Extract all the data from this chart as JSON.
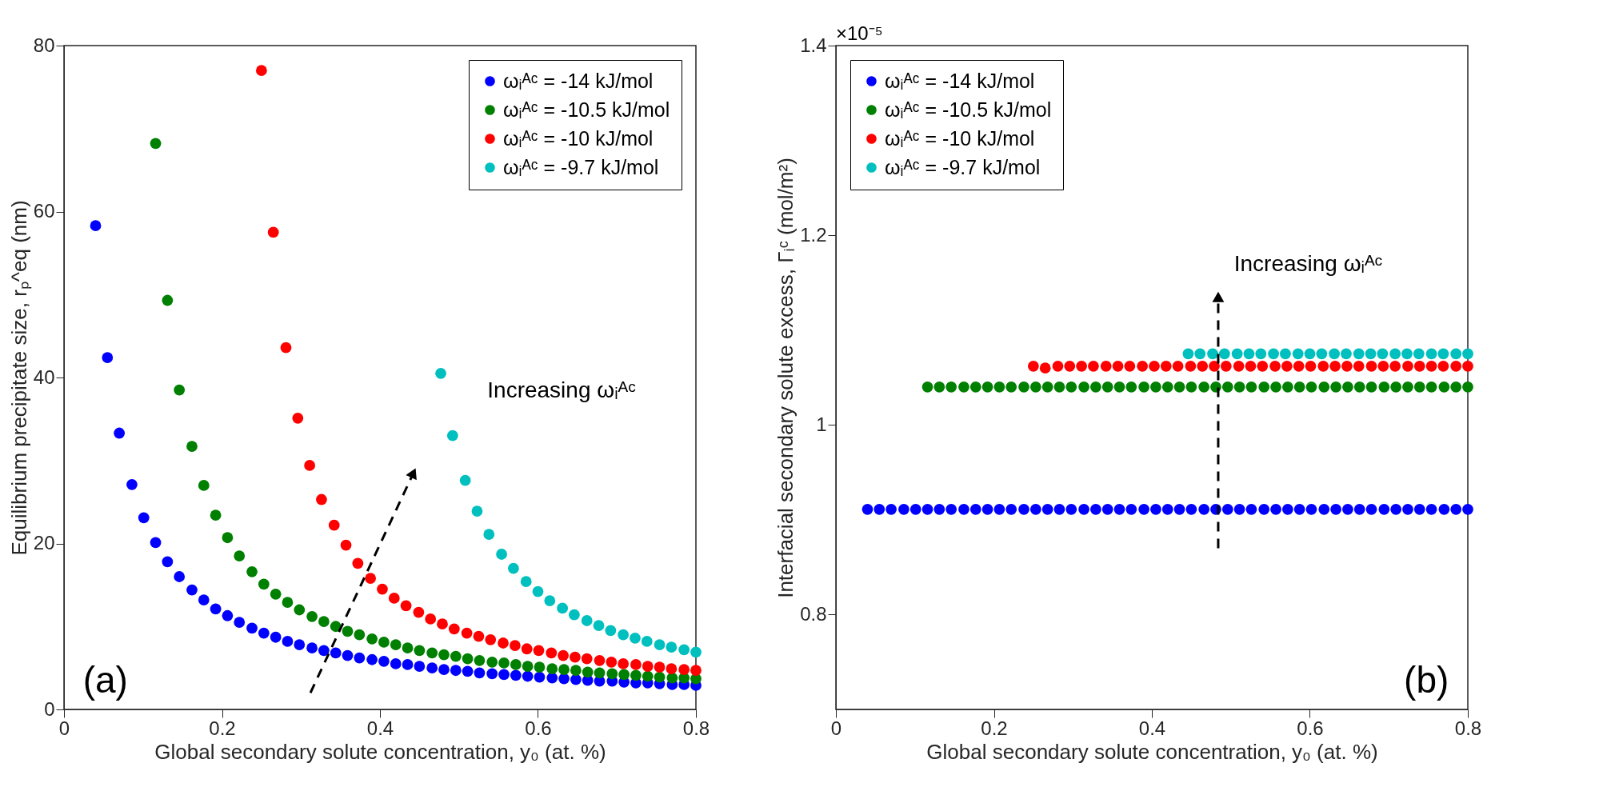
{
  "chart_data": [
    {
      "type": "scatter",
      "xlabel": "Global secondary solute concentration, y₀ (at. %)",
      "ylabel": "Equilibrium precipitate size, rₚ^eq (nm)",
      "xlim": [
        0,
        0.8
      ],
      "xticks": [
        0,
        0.2,
        0.4,
        0.6,
        0.8
      ],
      "ylim": [
        0,
        80
      ],
      "yticks": [
        0,
        20,
        40,
        60,
        80
      ],
      "legend": "top right",
      "marker": "circle",
      "annotations": [
        "(a)",
        "Increasing ωᵢᴬᶜ"
      ],
      "series": [
        {
          "name": "ωᵢᴬᶜ = -14 kJ/mol",
          "color": "#0000ff",
          "x": [
            0.04,
            0.055,
            0.07,
            0.086,
            0.101,
            0.116,
            0.131,
            0.146,
            0.162,
            0.177,
            0.192,
            0.207,
            0.222,
            0.238,
            0.253,
            0.268,
            0.283,
            0.298,
            0.314,
            0.329,
            0.344,
            0.359,
            0.374,
            0.39,
            0.405,
            0.42,
            0.435,
            0.45,
            0.466,
            0.481,
            0.496,
            0.511,
            0.526,
            0.542,
            0.557,
            0.572,
            0.587,
            0.602,
            0.618,
            0.633,
            0.648,
            0.663,
            0.678,
            0.694,
            0.709,
            0.724,
            0.739,
            0.754,
            0.77,
            0.785,
            0.8
          ],
          "values": [
            58.3,
            42.4,
            33.3,
            27.1,
            23.1,
            20.1,
            17.8,
            16.0,
            14.4,
            13.2,
            12.1,
            11.3,
            10.5,
            9.8,
            9.2,
            8.7,
            8.2,
            7.8,
            7.4,
            7.1,
            6.8,
            6.5,
            6.2,
            6.0,
            5.8,
            5.5,
            5.4,
            5.2,
            5.0,
            4.8,
            4.7,
            4.6,
            4.4,
            4.3,
            4.2,
            4.1,
            4.0,
            3.9,
            3.8,
            3.7,
            3.6,
            3.5,
            3.4,
            3.4,
            3.3,
            3.2,
            3.2,
            3.1,
            3.0,
            3.0,
            2.9
          ]
        },
        {
          "name": "ωᵢᴬᶜ = -10.5 kJ/mol",
          "color": "#008000",
          "x": [
            0.116,
            0.131,
            0.146,
            0.162,
            0.177,
            0.192,
            0.207,
            0.222,
            0.238,
            0.253,
            0.268,
            0.283,
            0.298,
            0.314,
            0.329,
            0.344,
            0.359,
            0.374,
            0.39,
            0.405,
            0.42,
            0.435,
            0.45,
            0.466,
            0.481,
            0.496,
            0.511,
            0.526,
            0.542,
            0.557,
            0.572,
            0.587,
            0.602,
            0.618,
            0.633,
            0.648,
            0.663,
            0.678,
            0.694,
            0.709,
            0.724,
            0.739,
            0.754,
            0.77,
            0.785,
            0.8
          ],
          "values": [
            68.2,
            49.3,
            38.5,
            31.7,
            27.0,
            23.4,
            20.7,
            18.5,
            16.6,
            15.1,
            13.9,
            12.9,
            12.0,
            11.2,
            10.6,
            10.0,
            9.4,
            9.0,
            8.5,
            8.1,
            7.8,
            7.4,
            7.1,
            6.8,
            6.6,
            6.4,
            6.1,
            5.9,
            5.7,
            5.6,
            5.4,
            5.2,
            5.1,
            4.9,
            4.8,
            4.7,
            4.5,
            4.4,
            4.3,
            4.2,
            4.1,
            4.0,
            3.9,
            3.8,
            3.8,
            3.7
          ]
        },
        {
          "name": "ωᵢᴬᶜ = -10 kJ/mol",
          "color": "#ff0000",
          "x": [
            0.25,
            0.265,
            0.281,
            0.296,
            0.311,
            0.326,
            0.342,
            0.357,
            0.372,
            0.388,
            0.403,
            0.418,
            0.433,
            0.449,
            0.464,
            0.479,
            0.494,
            0.51,
            0.525,
            0.54,
            0.556,
            0.571,
            0.586,
            0.601,
            0.617,
            0.632,
            0.647,
            0.662,
            0.678,
            0.693,
            0.708,
            0.724,
            0.739,
            0.754,
            0.769,
            0.785,
            0.8
          ],
          "values": [
            77.0,
            57.5,
            43.6,
            35.1,
            29.4,
            25.3,
            22.2,
            19.8,
            17.6,
            15.8,
            14.5,
            13.4,
            12.5,
            11.7,
            10.9,
            10.3,
            9.7,
            9.2,
            8.8,
            8.4,
            8.0,
            7.7,
            7.3,
            7.1,
            6.8,
            6.5,
            6.3,
            6.1,
            5.9,
            5.7,
            5.5,
            5.4,
            5.2,
            5.1,
            4.9,
            4.8,
            4.7
          ]
        },
        {
          "name": "ωᵢᴬᶜ = -9.7 kJ/mol",
          "color": "#00bfbf",
          "x": [
            0.477,
            0.492,
            0.508,
            0.523,
            0.538,
            0.554,
            0.569,
            0.585,
            0.6,
            0.615,
            0.631,
            0.646,
            0.662,
            0.677,
            0.692,
            0.708,
            0.723,
            0.738,
            0.754,
            0.769,
            0.785,
            0.8
          ],
          "values": [
            40.5,
            33.0,
            27.6,
            23.9,
            21.1,
            18.7,
            17.0,
            15.4,
            14.2,
            13.1,
            12.2,
            11.4,
            10.7,
            10.1,
            9.5,
            9.0,
            8.6,
            8.2,
            7.8,
            7.5,
            7.2,
            6.9
          ]
        }
      ]
    },
    {
      "type": "scatter",
      "xlabel": "Global secondary solute concentration, y₀ (at. %)",
      "ylabel": "Interfacial secondary solute excess, Γᵢᶜ (mol/m²)",
      "xlim": [
        0,
        0.8
      ],
      "xticks": [
        0,
        0.2,
        0.4,
        0.6,
        0.8
      ],
      "ylim": [
        0.7,
        1.4
      ],
      "yticks": [
        0.8,
        1,
        1.2,
        1.4
      ],
      "legend": "top left",
      "marker": "circle",
      "annotations": [
        "×10⁻⁵",
        "Increasing ωᵢᴬᶜ",
        "(b)"
      ],
      "series": [
        {
          "name": "ωᵢᴬᶜ = -14 kJ/mol",
          "color": "#0000ff",
          "x": [
            0.04,
            0.055,
            0.07,
            0.086,
            0.101,
            0.116,
            0.131,
            0.146,
            0.162,
            0.177,
            0.192,
            0.207,
            0.222,
            0.238,
            0.253,
            0.268,
            0.283,
            0.298,
            0.314,
            0.329,
            0.344,
            0.359,
            0.374,
            0.39,
            0.405,
            0.42,
            0.435,
            0.45,
            0.466,
            0.481,
            0.496,
            0.511,
            0.526,
            0.542,
            0.557,
            0.572,
            0.587,
            0.602,
            0.618,
            0.633,
            0.648,
            0.663,
            0.678,
            0.694,
            0.709,
            0.724,
            0.739,
            0.754,
            0.77,
            0.785,
            0.8
          ],
          "values": [
            0.911,
            0.911,
            0.911,
            0.911,
            0.911,
            0.911,
            0.911,
            0.911,
            0.911,
            0.911,
            0.911,
            0.911,
            0.911,
            0.911,
            0.911,
            0.911,
            0.911,
            0.911,
            0.911,
            0.911,
            0.911,
            0.911,
            0.911,
            0.911,
            0.911,
            0.911,
            0.911,
            0.911,
            0.911,
            0.911,
            0.911,
            0.911,
            0.911,
            0.911,
            0.911,
            0.911,
            0.911,
            0.911,
            0.911,
            0.911,
            0.911,
            0.911,
            0.911,
            0.911,
            0.911,
            0.911,
            0.911,
            0.911,
            0.911,
            0.911,
            0.911
          ]
        },
        {
          "name": "ωᵢᴬᶜ = -10.5 kJ/mol",
          "color": "#008000",
          "x": [
            0.116,
            0.131,
            0.146,
            0.162,
            0.177,
            0.192,
            0.207,
            0.222,
            0.238,
            0.253,
            0.268,
            0.283,
            0.298,
            0.314,
            0.329,
            0.344,
            0.359,
            0.374,
            0.39,
            0.405,
            0.42,
            0.435,
            0.45,
            0.466,
            0.481,
            0.496,
            0.511,
            0.526,
            0.542,
            0.557,
            0.572,
            0.587,
            0.602,
            0.618,
            0.633,
            0.648,
            0.663,
            0.678,
            0.694,
            0.709,
            0.724,
            0.739,
            0.754,
            0.77,
            0.785,
            0.8
          ],
          "values": [
            1.04,
            1.04,
            1.04,
            1.04,
            1.04,
            1.04,
            1.04,
            1.04,
            1.04,
            1.04,
            1.04,
            1.04,
            1.04,
            1.04,
            1.04,
            1.04,
            1.04,
            1.04,
            1.04,
            1.04,
            1.04,
            1.04,
            1.04,
            1.04,
            1.04,
            1.04,
            1.04,
            1.04,
            1.04,
            1.04,
            1.04,
            1.04,
            1.04,
            1.04,
            1.04,
            1.04,
            1.04,
            1.04,
            1.04,
            1.04,
            1.04,
            1.04,
            1.04,
            1.04,
            1.04,
            1.04
          ]
        },
        {
          "name": "ωᵢᴬᶜ = -10 kJ/mol",
          "color": "#ff0000",
          "x": [
            0.25,
            0.265,
            0.281,
            0.296,
            0.311,
            0.326,
            0.342,
            0.357,
            0.372,
            0.388,
            0.403,
            0.418,
            0.433,
            0.449,
            0.464,
            0.479,
            0.494,
            0.51,
            0.525,
            0.54,
            0.556,
            0.571,
            0.586,
            0.601,
            0.617,
            0.632,
            0.647,
            0.662,
            0.678,
            0.693,
            0.708,
            0.724,
            0.739,
            0.754,
            0.769,
            0.785,
            0.8
          ],
          "values": [
            1.062,
            1.06,
            1.062,
            1.062,
            1.062,
            1.062,
            1.062,
            1.062,
            1.062,
            1.062,
            1.062,
            1.062,
            1.062,
            1.062,
            1.062,
            1.062,
            1.062,
            1.062,
            1.062,
            1.062,
            1.062,
            1.062,
            1.062,
            1.062,
            1.062,
            1.062,
            1.062,
            1.062,
            1.062,
            1.062,
            1.062,
            1.062,
            1.062,
            1.062,
            1.062,
            1.062,
            1.062
          ]
        },
        {
          "name": "ωᵢᴬᶜ = -9.7 kJ/mol",
          "color": "#00bfbf",
          "x": [
            0.446,
            0.461,
            0.477,
            0.492,
            0.508,
            0.523,
            0.538,
            0.554,
            0.569,
            0.585,
            0.6,
            0.615,
            0.631,
            0.646,
            0.662,
            0.677,
            0.692,
            0.708,
            0.723,
            0.738,
            0.754,
            0.769,
            0.785,
            0.8
          ],
          "values": [
            1.075,
            1.075,
            1.075,
            1.075,
            1.075,
            1.075,
            1.075,
            1.075,
            1.075,
            1.075,
            1.075,
            1.075,
            1.075,
            1.075,
            1.075,
            1.075,
            1.075,
            1.075,
            1.075,
            1.075,
            1.075,
            1.075,
            1.075,
            1.075
          ]
        }
      ]
    }
  ]
}
